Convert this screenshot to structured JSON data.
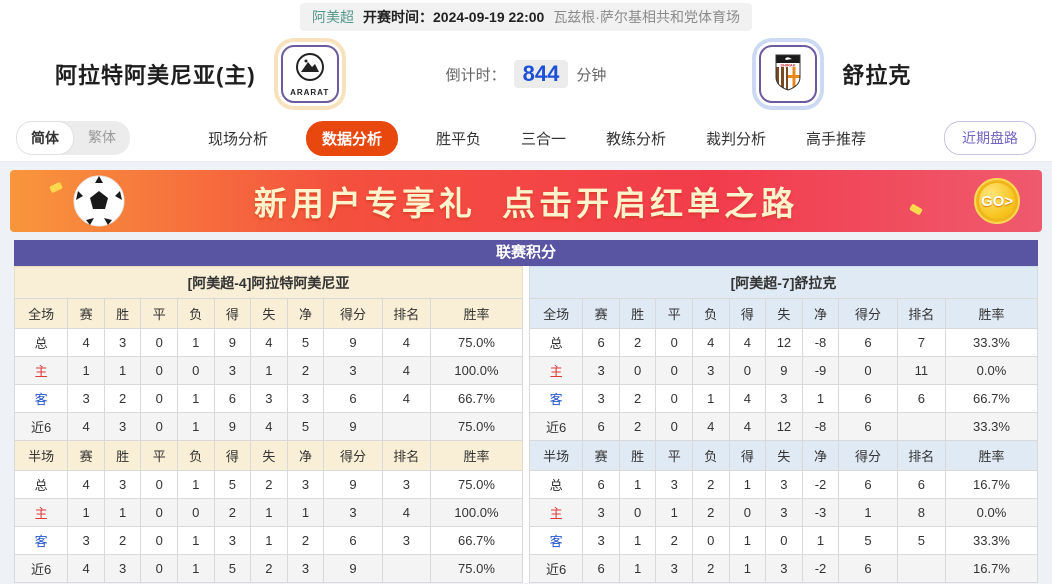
{
  "match_bar": {
    "league": "阿美超",
    "kickoff_label": "开赛时间：",
    "kickoff_time": "2024-09-19 22:00",
    "venue": "瓦兹根·萨尔基相共和党体育场"
  },
  "teams": {
    "home": {
      "name": "阿拉特阿美尼亚(主)",
      "logo_text": "ARARAT"
    },
    "away": {
      "name": "舒拉克",
      "logo_text": "SHIRAK"
    },
    "countdown": {
      "label": "倒计时：",
      "value": "844",
      "unit": "分钟"
    }
  },
  "nav": {
    "lang_tabs": [
      {
        "label": "简体",
        "active": true
      },
      {
        "label": "繁体",
        "active": false
      }
    ],
    "tabs": [
      {
        "label": "现场分析",
        "active": false
      },
      {
        "label": "数据分析",
        "active": true
      },
      {
        "label": "胜平负",
        "active": false
      },
      {
        "label": "三合一",
        "active": false
      },
      {
        "label": "教练分析",
        "active": false
      },
      {
        "label": "裁判分析",
        "active": false
      },
      {
        "label": "高手推荐",
        "active": false
      }
    ],
    "recent_button": "近期盘路"
  },
  "banner": {
    "text": "新用户专享礼  点击开启红单之路",
    "go_label": "GO>"
  },
  "colors": {
    "title_bar": "#5a55a3",
    "active_tab": "#e8470e",
    "home_theme": "#f9efd6",
    "away_theme": "#e0eaf4",
    "countdown_blue": "#1d4fd7",
    "home_row_red": "#e03a3a",
    "away_row_blue": "#2255cc"
  },
  "standings": {
    "title": "联赛积分",
    "columns_full": [
      "全场",
      "赛",
      "胜",
      "平",
      "负",
      "得",
      "失",
      "净",
      "得分",
      "排名",
      "胜率"
    ],
    "columns_half": [
      "半场",
      "赛",
      "胜",
      "平",
      "负",
      "得",
      "失",
      "净",
      "得分",
      "排名",
      "胜率"
    ],
    "home": {
      "header": "[阿美超-4]阿拉特阿美尼亚",
      "full": [
        {
          "label": "总",
          "color": "dark",
          "cells": [
            "4",
            "3",
            "0",
            "1",
            "9",
            "4",
            "5",
            "9",
            "4",
            "75.0%"
          ]
        },
        {
          "label": "主",
          "color": "red",
          "cells": [
            "1",
            "1",
            "0",
            "0",
            "3",
            "1",
            "2",
            "3",
            "4",
            "100.0%"
          ]
        },
        {
          "label": "客",
          "color": "blue",
          "cells": [
            "3",
            "2",
            "0",
            "1",
            "6",
            "3",
            "3",
            "6",
            "4",
            "66.7%"
          ]
        },
        {
          "label": "近6",
          "color": "dark",
          "cells": [
            "4",
            "3",
            "0",
            "1",
            "9",
            "4",
            "5",
            "9",
            "",
            "75.0%"
          ]
        }
      ],
      "half": [
        {
          "label": "总",
          "color": "dark",
          "cells": [
            "4",
            "3",
            "0",
            "1",
            "5",
            "2",
            "3",
            "9",
            "3",
            "75.0%"
          ]
        },
        {
          "label": "主",
          "color": "red",
          "cells": [
            "1",
            "1",
            "0",
            "0",
            "2",
            "1",
            "1",
            "3",
            "4",
            "100.0%"
          ]
        },
        {
          "label": "客",
          "color": "blue",
          "cells": [
            "3",
            "2",
            "0",
            "1",
            "3",
            "1",
            "2",
            "6",
            "3",
            "66.7%"
          ]
        },
        {
          "label": "近6",
          "color": "dark",
          "cells": [
            "4",
            "3",
            "0",
            "1",
            "5",
            "2",
            "3",
            "9",
            "",
            "75.0%"
          ]
        }
      ]
    },
    "away": {
      "header": "[阿美超-7]舒拉克",
      "full": [
        {
          "label": "总",
          "color": "dark",
          "cells": [
            "6",
            "2",
            "0",
            "4",
            "4",
            "12",
            "-8",
            "6",
            "7",
            "33.3%"
          ]
        },
        {
          "label": "主",
          "color": "red",
          "cells": [
            "3",
            "0",
            "0",
            "3",
            "0",
            "9",
            "-9",
            "0",
            "11",
            "0.0%"
          ]
        },
        {
          "label": "客",
          "color": "blue",
          "cells": [
            "3",
            "2",
            "0",
            "1",
            "4",
            "3",
            "1",
            "6",
            "6",
            "66.7%"
          ]
        },
        {
          "label": "近6",
          "color": "dark",
          "cells": [
            "6",
            "2",
            "0",
            "4",
            "4",
            "12",
            "-8",
            "6",
            "",
            "33.3%"
          ]
        }
      ],
      "half": [
        {
          "label": "总",
          "color": "dark",
          "cells": [
            "6",
            "1",
            "3",
            "2",
            "1",
            "3",
            "-2",
            "6",
            "6",
            "16.7%"
          ]
        },
        {
          "label": "主",
          "color": "red",
          "cells": [
            "3",
            "0",
            "1",
            "2",
            "0",
            "3",
            "-3",
            "1",
            "8",
            "0.0%"
          ]
        },
        {
          "label": "客",
          "color": "blue",
          "cells": [
            "3",
            "1",
            "2",
            "0",
            "1",
            "0",
            "1",
            "5",
            "5",
            "33.3%"
          ]
        },
        {
          "label": "近6",
          "color": "dark",
          "cells": [
            "6",
            "1",
            "3",
            "2",
            "1",
            "3",
            "-2",
            "6",
            "",
            "16.7%"
          ]
        }
      ]
    }
  }
}
